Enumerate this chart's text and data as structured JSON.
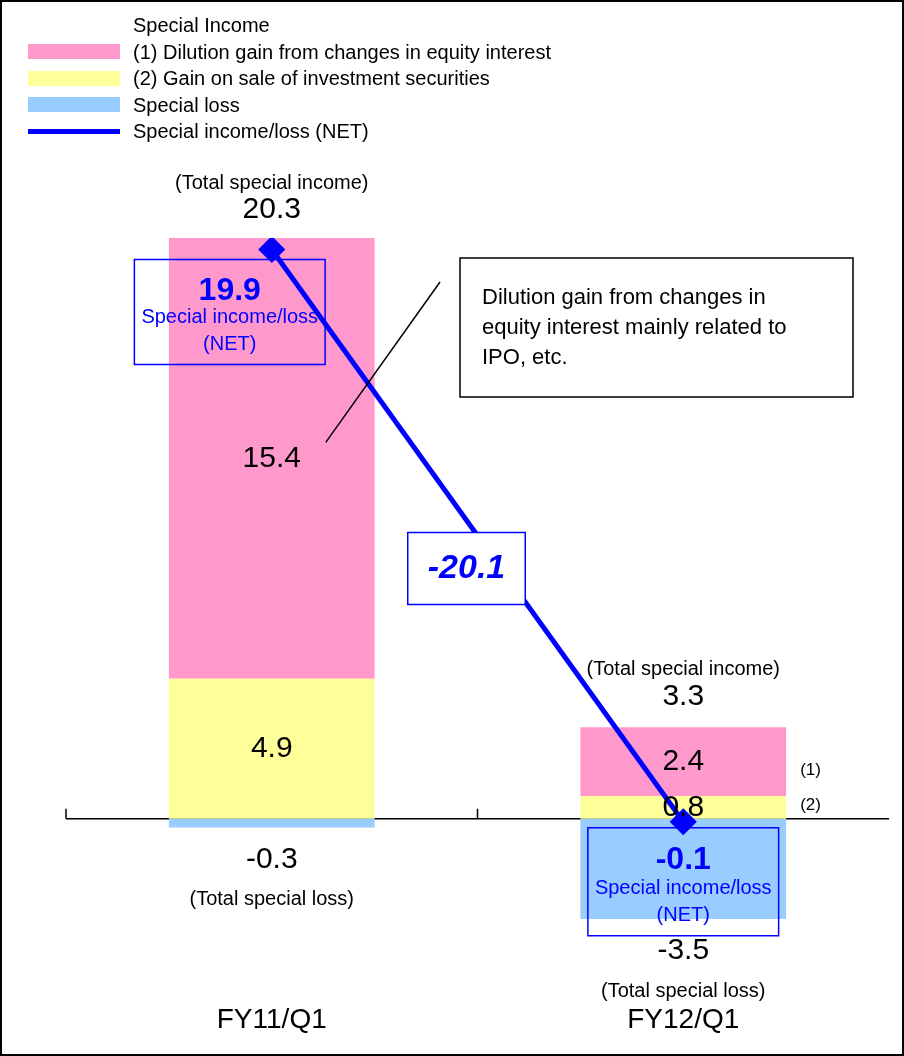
{
  "chart_data": {
    "type": "bar",
    "stacked": true,
    "categories": [
      "FY11/Q1",
      "FY12/Q1"
    ],
    "series": [
      {
        "name": "(2) Gain on sale of investment securities",
        "color": "#ffff99",
        "values": [
          4.9,
          0.8
        ]
      },
      {
        "name": "(1) Dilution gain from changes in equity interest",
        "color": "#ff99cc",
        "values": [
          15.4,
          2.4
        ]
      },
      {
        "name": "Special loss",
        "color": "#99ccff",
        "values": [
          -0.3,
          -3.5
        ]
      },
      {
        "name": "Special income/loss (NET)",
        "type": "line",
        "color": "#0000ff",
        "values": [
          19.9,
          -0.1
        ]
      }
    ],
    "marker": "diamond",
    "legend": "top left",
    "legend_title": "Special Income",
    "data_labels": true,
    "tick_labels": "x",
    "grid": false,
    "annotations": [
      {
        "text": "(Total special income)",
        "x": "FY11/Q1",
        "y": 20.3
      },
      {
        "text": "20.3",
        "x": "FY11/Q1",
        "y": 20.3
      },
      {
        "text": "(Total special income)",
        "x": "FY12/Q1",
        "y": 3.3
      },
      {
        "text": "3.3",
        "x": "FY12/Q1",
        "y": 3.3
      },
      {
        "text": "(Total special loss)",
        "x": "FY11/Q1",
        "y": -0.3
      },
      {
        "text": "(Total special loss)",
        "x": "FY12/Q1",
        "y": -3.5
      },
      {
        "text": "Special income/loss (NET)",
        "x": "FY11/Q1",
        "y": 19.9
      },
      {
        "text": "Special income/loss (NET)",
        "x": "FY12/Q1",
        "y": -0.1
      },
      "-20.1",
      "(1)",
      "(2)",
      "Dilution gain from changes in equity interest mainly related to IPO, etc."
    ]
  }
}
